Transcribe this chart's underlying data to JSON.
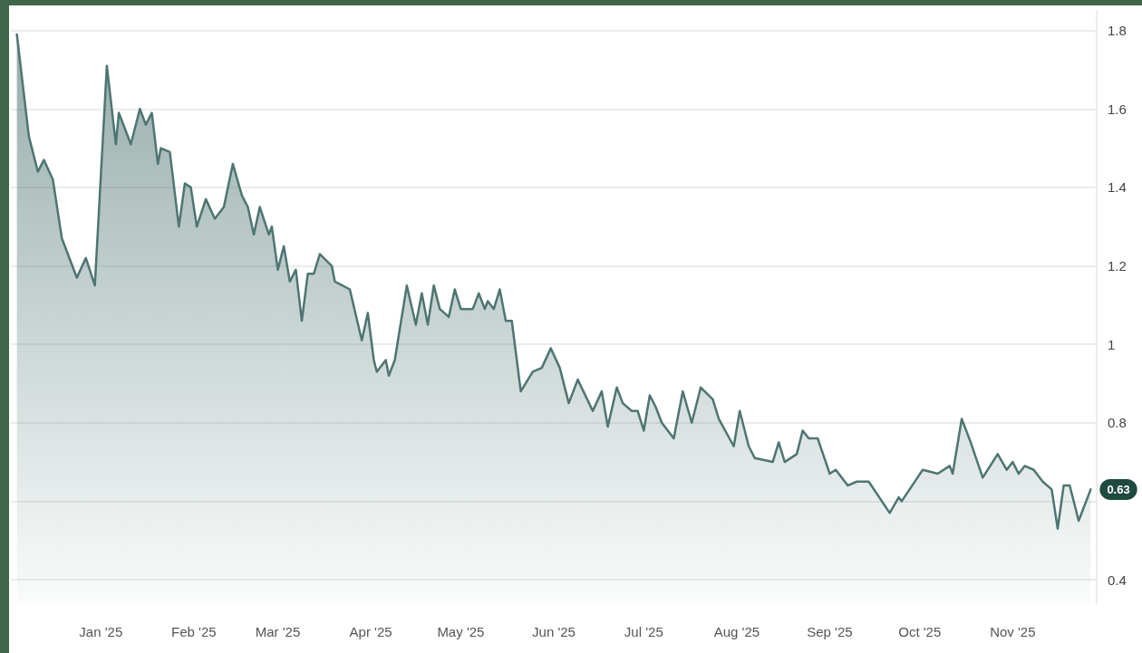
{
  "chart_data": {
    "type": "area",
    "x": [
      "2024-12-04",
      "2024-12-08",
      "2024-12-11",
      "2024-12-13",
      "2024-12-16",
      "2024-12-19",
      "2024-12-22",
      "2024-12-24",
      "2024-12-27",
      "2024-12-30",
      "2025-01-03",
      "2025-01-06",
      "2025-01-07",
      "2025-01-11",
      "2025-01-14",
      "2025-01-16",
      "2025-01-18",
      "2025-01-20",
      "2025-01-21",
      "2025-01-24",
      "2025-01-27",
      "2025-01-29",
      "2025-01-31",
      "2025-02-02",
      "2025-02-05",
      "2025-02-08",
      "2025-02-11",
      "2025-02-14",
      "2025-02-17",
      "2025-02-19",
      "2025-02-21",
      "2025-02-23",
      "2025-02-26",
      "2025-02-27",
      "2025-03-01",
      "2025-03-03",
      "2025-03-05",
      "2025-03-07",
      "2025-03-09",
      "2025-03-11",
      "2025-03-13",
      "2025-03-15",
      "2025-03-19",
      "2025-03-20",
      "2025-03-25",
      "2025-03-29",
      "2025-03-31",
      "2025-04-02",
      "2025-04-03",
      "2025-04-06",
      "2025-04-07",
      "2025-04-09",
      "2025-04-13",
      "2025-04-16",
      "2025-04-18",
      "2025-04-20",
      "2025-04-22",
      "2025-04-24",
      "2025-04-27",
      "2025-04-29",
      "2025-05-01",
      "2025-05-05",
      "2025-05-07",
      "2025-05-09",
      "2025-05-10",
      "2025-05-12",
      "2025-05-14",
      "2025-05-16",
      "2025-05-18",
      "2025-05-21",
      "2025-05-25",
      "2025-05-28",
      "2025-05-31",
      "2025-06-03",
      "2025-06-06",
      "2025-06-09",
      "2025-06-14",
      "2025-06-17",
      "2025-06-19",
      "2025-06-22",
      "2025-06-24",
      "2025-06-27",
      "2025-06-29",
      "2025-07-01",
      "2025-07-03",
      "2025-07-05",
      "2025-07-07",
      "2025-07-11",
      "2025-07-14",
      "2025-07-17",
      "2025-07-20",
      "2025-07-24",
      "2025-07-26",
      "2025-07-31",
      "2025-08-02",
      "2025-08-05",
      "2025-08-07",
      "2025-08-13",
      "2025-08-15",
      "2025-08-17",
      "2025-08-21",
      "2025-08-23",
      "2025-08-25",
      "2025-08-28",
      "2025-09-01",
      "2025-09-03",
      "2025-09-07",
      "2025-09-10",
      "2025-09-12",
      "2025-09-14",
      "2025-09-21",
      "2025-09-24",
      "2025-09-25",
      "2025-10-02",
      "2025-10-07",
      "2025-10-11",
      "2025-10-12",
      "2025-10-15",
      "2025-10-18",
      "2025-10-22",
      "2025-10-27",
      "2025-10-30",
      "2025-11-01",
      "2025-11-03",
      "2025-11-05",
      "2025-11-08",
      "2025-11-11",
      "2025-11-14",
      "2025-11-16",
      "2025-11-18",
      "2025-11-20",
      "2025-11-23",
      "2025-11-27"
    ],
    "series": [
      {
        "color": "#4e7572",
        "values": [
          1.79,
          1.53,
          1.44,
          1.47,
          1.42,
          1.27,
          1.21,
          1.17,
          1.22,
          1.15,
          1.71,
          1.51,
          1.59,
          1.51,
          1.6,
          1.56,
          1.59,
          1.46,
          1.5,
          1.49,
          1.3,
          1.41,
          1.4,
          1.3,
          1.37,
          1.32,
          1.35,
          1.46,
          1.38,
          1.35,
          1.28,
          1.35,
          1.28,
          1.3,
          1.19,
          1.25,
          1.16,
          1.19,
          1.06,
          1.18,
          1.18,
          1.23,
          1.2,
          1.16,
          1.14,
          1.01,
          1.08,
          0.96,
          0.93,
          0.96,
          0.92,
          0.96,
          1.15,
          1.05,
          1.13,
          1.05,
          1.15,
          1.09,
          1.07,
          1.14,
          1.09,
          1.09,
          1.13,
          1.09,
          1.11,
          1.09,
          1.14,
          1.06,
          1.06,
          0.88,
          0.93,
          0.94,
          0.99,
          0.94,
          0.85,
          0.91,
          0.83,
          0.88,
          0.79,
          0.89,
          0.85,
          0.83,
          0.83,
          0.78,
          0.87,
          0.84,
          0.8,
          0.76,
          0.88,
          0.8,
          0.89,
          0.86,
          0.81,
          0.74,
          0.83,
          0.74,
          0.71,
          0.7,
          0.75,
          0.7,
          0.72,
          0.78,
          0.76,
          0.76,
          0.67,
          0.68,
          0.64,
          0.65,
          0.65,
          0.65,
          0.57,
          0.61,
          0.6,
          0.68,
          0.67,
          0.69,
          0.67,
          0.81,
          0.75,
          0.66,
          0.72,
          0.68,
          0.7,
          0.67,
          0.69,
          0.68,
          0.65,
          0.63,
          0.53,
          0.64,
          0.64,
          0.55,
          0.63
        ],
        "value_labels": [
          null,
          null,
          null,
          null,
          null,
          null,
          null,
          null,
          null,
          null,
          null,
          null,
          null,
          null,
          null,
          null,
          null,
          null,
          null,
          null,
          null,
          null,
          null,
          null,
          null,
          null,
          null,
          null,
          null,
          null,
          null,
          null,
          null,
          null,
          null,
          null,
          null,
          null,
          null,
          null,
          null,
          null,
          null,
          null,
          null,
          null,
          null,
          null,
          null,
          null,
          null,
          null,
          null,
          null,
          null,
          null,
          null,
          null,
          null,
          null,
          null,
          null,
          null,
          null,
          null,
          null,
          null,
          null,
          null,
          null,
          null,
          null,
          null,
          null,
          null,
          null,
          null,
          null,
          null,
          null,
          null,
          null,
          null,
          null,
          null,
          null,
          null,
          null,
          null,
          null,
          null,
          null,
          null,
          null,
          null,
          null,
          null,
          null,
          null,
          null,
          null,
          null,
          null,
          null,
          null,
          null,
          null,
          null,
          null,
          null,
          null,
          null,
          null,
          null,
          null,
          null,
          null,
          null,
          null,
          null,
          null,
          null,
          null,
          null,
          null,
          null,
          null,
          null,
          null,
          null,
          null,
          null,
          "0.63"
        ]
      }
    ],
    "xlim": [
      "2024-12-02",
      "2025-11-29"
    ],
    "xticks": [
      {
        "value": "2025-01-01",
        "label": "Jan '25"
      },
      {
        "value": "2025-02-01",
        "label": "Feb '25"
      },
      {
        "value": "2025-03-01",
        "label": "Mar '25"
      },
      {
        "value": "2025-04-01",
        "label": "Apr '25"
      },
      {
        "value": "2025-05-01",
        "label": "May '25"
      },
      {
        "value": "2025-06-01",
        "label": "Jun '25"
      },
      {
        "value": "2025-07-01",
        "label": "Jul '25"
      },
      {
        "value": "2025-08-01",
        "label": "Aug '25"
      },
      {
        "value": "2025-09-01",
        "label": "Sep '25"
      },
      {
        "value": "2025-10-01",
        "label": "Oct '25"
      },
      {
        "value": "2025-11-01",
        "label": "Nov '25"
      }
    ],
    "ylim": [
      0.34,
      1.85
    ],
    "yticks": [
      0.4,
      {
        "value": 0.6,
        "label": null
      },
      0.8,
      1,
      1.2,
      1.4,
      1.6,
      1.8
    ],
    "grid": "y",
    "marker": "none",
    "line_style": "solid"
  }
}
